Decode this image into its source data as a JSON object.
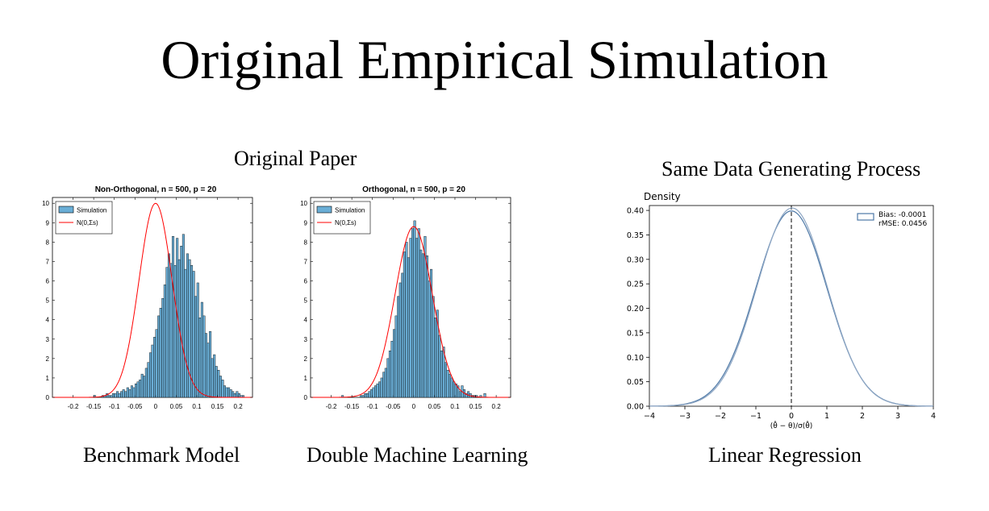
{
  "slide": {
    "title": "Original Empirical Simulation",
    "left_heading": "Original Paper",
    "right_heading": "Same Data Generating Process"
  },
  "colors": {
    "bar_fill": "#6aaed6",
    "bar_edge": "#000000",
    "normal_curve": "#ff0000",
    "kde_line": "#4e79a7",
    "kde_line_2": "#8fa7c4"
  },
  "chart_data": [
    {
      "type": "bar",
      "title": "Non-Orthogonal, n = 500, p = 20",
      "caption": "Benchmark Model",
      "xlabel": "",
      "ylabel": "",
      "xlim": [
        -0.25,
        0.235
      ],
      "ylim": [
        0,
        10.3
      ],
      "xticks": [
        "-0.2",
        "-0.15",
        "-0.1",
        "-0.05",
        "0",
        "0.05",
        "0.1",
        "0.15",
        "0.2"
      ],
      "yticks": [
        "0",
        "1",
        "2",
        "3",
        "4",
        "5",
        "6",
        "7",
        "8",
        "9",
        "10"
      ],
      "legend": [
        "Simulation",
        "N(0,Σs)"
      ],
      "legend_position": "top-left",
      "bin_width": 0.005,
      "bin_centers": [
        -0.1475,
        -0.1425,
        -0.1375,
        -0.1325,
        -0.1275,
        -0.1225,
        -0.1175,
        -0.1125,
        -0.1075,
        -0.1025,
        -0.0975,
        -0.0925,
        -0.0875,
        -0.0825,
        -0.0775,
        -0.0725,
        -0.0675,
        -0.0625,
        -0.0575,
        -0.0525,
        -0.0475,
        -0.0425,
        -0.0375,
        -0.0325,
        -0.0275,
        -0.0225,
        -0.0175,
        -0.0125,
        -0.0075,
        -0.0025,
        0.0025,
        0.0075,
        0.0125,
        0.0175,
        0.0225,
        0.0275,
        0.0325,
        0.0375,
        0.0425,
        0.0475,
        0.0525,
        0.0575,
        0.0625,
        0.0675,
        0.0725,
        0.0775,
        0.0825,
        0.0875,
        0.0925,
        0.0975,
        0.1025,
        0.1075,
        0.1125,
        0.1175,
        0.1225,
        0.1275,
        0.1325,
        0.1375,
        0.1425,
        0.1475,
        0.1525,
        0.1575,
        0.1625,
        0.1675,
        0.1725,
        0.1775,
        0.1825,
        0.1875,
        0.1925,
        0.1975,
        0.2025,
        0.2075,
        0.2125
      ],
      "values": [
        0.1,
        0.0,
        0.0,
        0.0,
        0.1,
        0.1,
        0.2,
        0.1,
        0.1,
        0.2,
        0.2,
        0.3,
        0.2,
        0.3,
        0.4,
        0.3,
        0.5,
        0.4,
        0.6,
        0.5,
        0.7,
        0.8,
        0.9,
        1.2,
        1.1,
        1.5,
        1.8,
        2.3,
        2.7,
        3.1,
        3.5,
        4.2,
        4.6,
        5.1,
        5.8,
        6.7,
        7.4,
        6.9,
        8.3,
        6.8,
        8.2,
        7.1,
        7.8,
        8.4,
        6.6,
        7.4,
        7.1,
        6.8,
        6.5,
        5.2,
        5.9,
        4.1,
        4.9,
        4.2,
        3.3,
        2.8,
        3.4,
        2.0,
        2.2,
        1.6,
        1.4,
        1.1,
        0.9,
        0.6,
        0.5,
        0.5,
        0.4,
        0.3,
        0.2,
        0.3,
        0.2,
        0.1,
        0.1
      ],
      "normal_curve": {
        "mean": 0,
        "peak": 10.0,
        "sd": 0.04
      }
    },
    {
      "type": "bar",
      "title": "Orthogonal, n = 500, p = 20",
      "caption": "Double Machine Learning",
      "xlabel": "",
      "ylabel": "",
      "xlim": [
        -0.25,
        0.235
      ],
      "ylim": [
        0,
        10.3
      ],
      "xticks": [
        "-0.2",
        "-0.15",
        "-0.1",
        "-0.05",
        "0",
        "0.05",
        "0.1",
        "0.15",
        "0.2"
      ],
      "yticks": [
        "0",
        "1",
        "2",
        "3",
        "4",
        "5",
        "6",
        "7",
        "8",
        "9",
        "10"
      ],
      "legend": [
        "Simulation",
        "N(0,Σs)"
      ],
      "legend_position": "top-left",
      "bin_width": 0.005,
      "bin_centers": [
        -0.1775,
        -0.1725,
        -0.1675,
        -0.1625,
        -0.1575,
        -0.1525,
        -0.1475,
        -0.1425,
        -0.1375,
        -0.1325,
        -0.1275,
        -0.1225,
        -0.1175,
        -0.1125,
        -0.1075,
        -0.1025,
        -0.0975,
        -0.0925,
        -0.0875,
        -0.0825,
        -0.0775,
        -0.0725,
        -0.0675,
        -0.0625,
        -0.0575,
        -0.0525,
        -0.0475,
        -0.0425,
        -0.0375,
        -0.0325,
        -0.0275,
        -0.0225,
        -0.0175,
        -0.0125,
        -0.0075,
        -0.0025,
        0.0025,
        0.0075,
        0.0125,
        0.0175,
        0.0225,
        0.0275,
        0.0325,
        0.0375,
        0.0425,
        0.0475,
        0.0525,
        0.0575,
        0.0625,
        0.0675,
        0.0725,
        0.0775,
        0.0825,
        0.0875,
        0.0925,
        0.0975,
        0.1025,
        0.1075,
        0.1125,
        0.1175,
        0.1225,
        0.1275,
        0.1325,
        0.1375,
        0.1425,
        0.1475,
        0.1525,
        0.1575,
        0.1625,
        0.1675,
        0.1725
      ],
      "values": [
        0.0,
        0.1,
        0.0,
        0.0,
        0.0,
        0.0,
        0.0,
        0.0,
        0.0,
        0.0,
        0.1,
        0.1,
        0.2,
        0.2,
        0.3,
        0.4,
        0.5,
        0.6,
        0.7,
        0.8,
        1.0,
        1.3,
        1.5,
        2.0,
        2.4,
        2.9,
        3.5,
        4.2,
        5.2,
        5.9,
        6.4,
        7.5,
        8.0,
        7.2,
        8.2,
        8.7,
        9.1,
        8.2,
        8.7,
        7.6,
        7.4,
        8.3,
        7.3,
        6.0,
        6.6,
        5.2,
        4.1,
        4.5,
        3.2,
        2.4,
        2.6,
        1.8,
        1.4,
        1.2,
        1.0,
        0.8,
        0.7,
        0.6,
        0.3,
        0.6,
        0.4,
        0.2,
        0.3,
        0.2,
        0.1,
        0.1,
        0.1,
        0.0,
        0.1,
        0.0,
        0.2
      ],
      "normal_curve": {
        "mean": 0,
        "peak": 8.8,
        "sd": 0.045
      }
    },
    {
      "type": "line",
      "title": "",
      "caption": "Linear Regression",
      "ylabel": "Density",
      "xlabel": "(θ̂ − θ)/σ(θ̂)",
      "xlim": [
        -4,
        4
      ],
      "ylim": [
        0,
        0.41
      ],
      "xticks": [
        "−4",
        "−3",
        "−2",
        "−1",
        "0",
        "1",
        "2",
        "3",
        "4"
      ],
      "yticks": [
        "0.00",
        "0.05",
        "0.10",
        "0.15",
        "0.20",
        "0.25",
        "0.30",
        "0.35",
        "0.40"
      ],
      "vline_x": 0,
      "legend": [
        "Bias: -0.0001",
        "rMSE: 0.0456"
      ],
      "legend_position": "top-right",
      "series": [
        {
          "mean": 0.0,
          "sd": 1.0
        },
        {
          "mean": 0.02,
          "sd": 0.985
        }
      ]
    }
  ]
}
